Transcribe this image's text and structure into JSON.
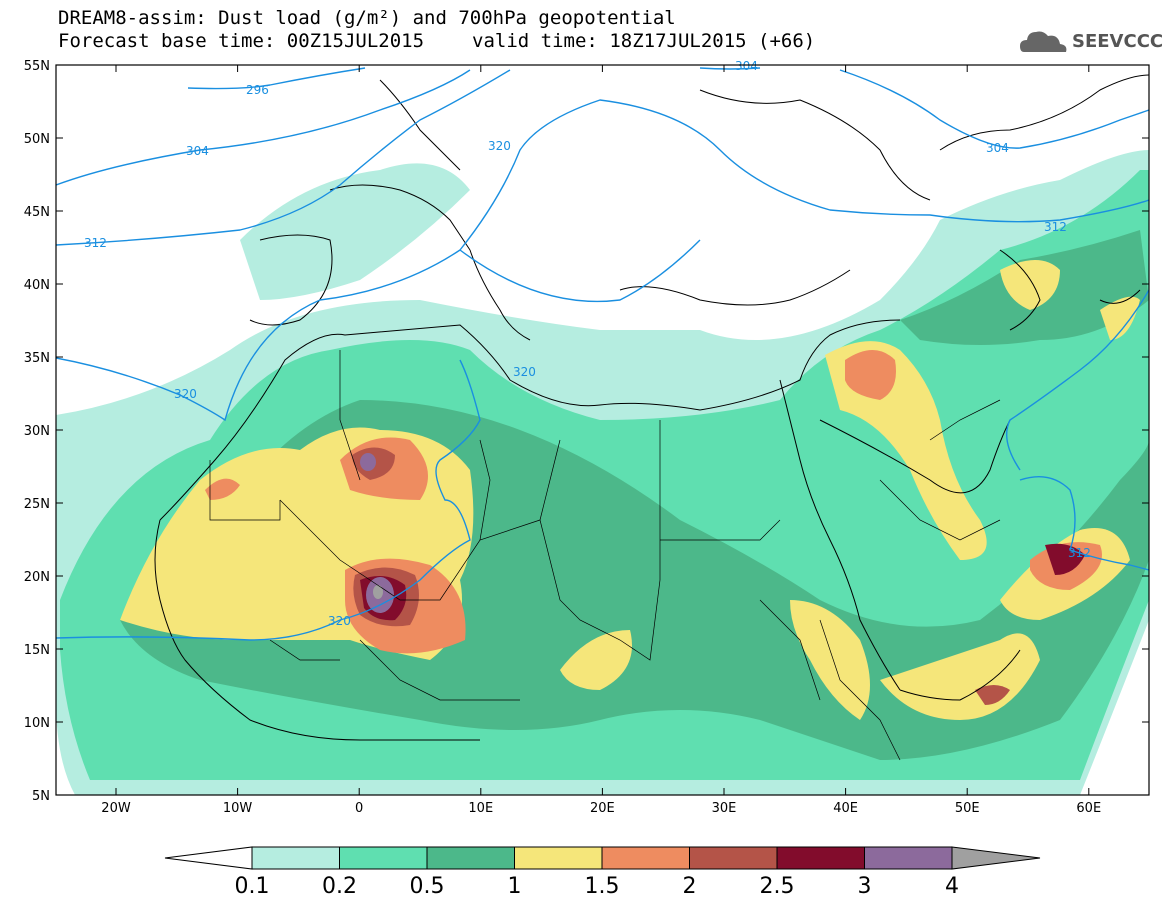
{
  "header": {
    "line1": "DREAM8-assim: Dust load (g/m²) and 700hPa geopotential",
    "line2_base": "Forecast base time: 00Z15JUL2015",
    "line2_valid": "valid time: 18Z17JUL2015 (+66)"
  },
  "logo": {
    "text": "SEEVCCC",
    "icon": "cloud-icon"
  },
  "axes": {
    "lat_labels": [
      "55N",
      "50N",
      "45N",
      "40N",
      "35N",
      "30N",
      "25N",
      "20N",
      "15N",
      "10N",
      "5N"
    ],
    "lon_labels": [
      "20W",
      "10W",
      "0",
      "10E",
      "20E",
      "30E",
      "40E",
      "50E",
      "60E"
    ]
  },
  "colorbar": {
    "labels": [
      "0.1",
      "0.2",
      "0.5",
      "1",
      "1.5",
      "2",
      "2.5",
      "3",
      "4"
    ],
    "colors": [
      "#b5ede0",
      "#5fdfb0",
      "#4cb88a",
      "#f5e67a",
      "#ee8c60",
      "#b45448",
      "#820c2c",
      "#8c6a9c",
      "#a0a0a0"
    ]
  },
  "contours": {
    "labels": [
      "296",
      "304",
      "304",
      "304",
      "312",
      "312",
      "312",
      "320",
      "320",
      "320",
      "320"
    ]
  },
  "map_colors": {
    "land_outline": "#000000",
    "contour": "#1a8fe0",
    "background": "#ffffff"
  }
}
